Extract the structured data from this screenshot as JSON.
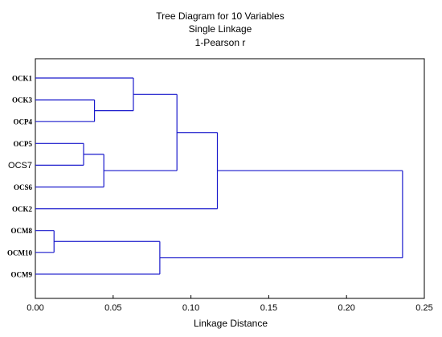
{
  "chart_data": {
    "type": "dendrogram",
    "title_lines": [
      "Tree Diagram for 10  Variables",
      "Single Linkage",
      "1-Pearson r"
    ],
    "xlabel": "Linkage Distance",
    "xlim": [
      0,
      0.25
    ],
    "xticks": [
      "0.00",
      "0.05",
      "0.10",
      "0.15",
      "0.20",
      "0.25"
    ],
    "grid": false,
    "line_color": "#1a1acc",
    "leaves": [
      "OCK1",
      "OCK3",
      "OCP4",
      "OCP5",
      "OCS7",
      "OCS6",
      "OCK2",
      "OCM8",
      "OCM10",
      "OCM9"
    ],
    "merges": [
      {
        "a": "OCM8",
        "b": "OCM10",
        "distance": 0.012
      },
      {
        "a": "OCP5",
        "b": "OCS7",
        "distance": 0.031
      },
      {
        "a": "OCK3",
        "b": "OCP4",
        "distance": 0.038
      },
      {
        "a": "OCP5+OCS7",
        "b": "OCS6",
        "distance": 0.044
      },
      {
        "a": "OCK1",
        "b": "OCK3+OCP4",
        "distance": 0.063
      },
      {
        "a": "OCM8+OCM10",
        "b": "OCM9",
        "distance": 0.08
      },
      {
        "a": "OCK1+OCK3+OCP4",
        "b": "OCP5+OCS7+OCS6",
        "distance": 0.091
      },
      {
        "a": "OCK1..OCS6",
        "b": "OCK2",
        "distance": 0.117
      },
      {
        "a": "OCK1..OCK2",
        "b": "OCM8+OCM10+OCM9",
        "distance": 0.236
      }
    ]
  }
}
